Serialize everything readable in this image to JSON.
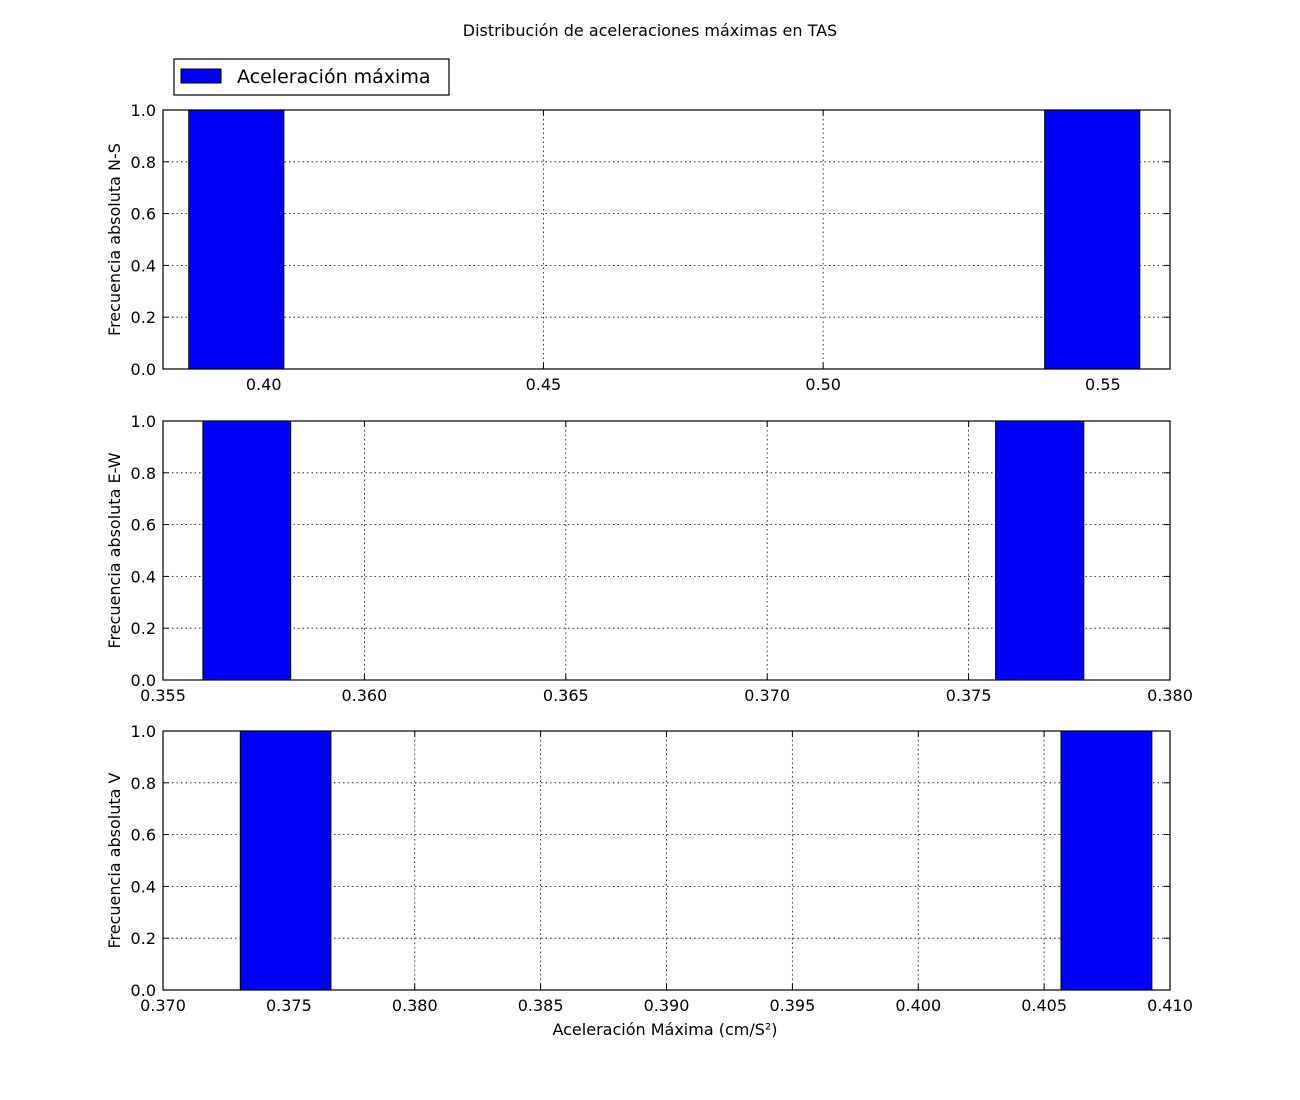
{
  "chart_data": {
    "type": "bar",
    "title": "Distribución de aceleraciones máximas en TAS",
    "legend": {
      "label": "Aceleración máxima",
      "placement": "upper-left",
      "color": "#0000ff"
    },
    "bar_color": "#0000ff",
    "grid": true,
    "xlabel": "Aceleración Máxima (cm/S²)",
    "panels": [
      {
        "ylabel": "Frecuencia absoluta N-S",
        "xlim": [
          0.382,
          0.562
        ],
        "ylim": [
          0,
          1.0
        ],
        "xticks": [
          "0.40",
          "0.45",
          "0.50",
          "0.55"
        ],
        "yticks": [
          "0.0",
          "0.2",
          "0.4",
          "0.6",
          "0.8",
          "1.0"
        ],
        "bars": [
          {
            "x0": 0.3866,
            "x1": 0.4036,
            "value": 1.0
          },
          {
            "x0": 0.5396,
            "x1": 0.5566,
            "value": 1.0
          }
        ]
      },
      {
        "ylabel": "Frecuencia absoluta E-W",
        "xlim": [
          0.355,
          0.38
        ],
        "ylim": [
          0,
          1.0
        ],
        "xticks": [
          "0.355",
          "0.360",
          "0.365",
          "0.370",
          "0.375",
          "0.380"
        ],
        "yticks": [
          "0.0",
          "0.2",
          "0.4",
          "0.6",
          "0.8",
          "1.0"
        ],
        "bars": [
          {
            "x0": 0.35599,
            "x1": 0.35817,
            "value": 1.0
          },
          {
            "x0": 0.37567,
            "x1": 0.37786,
            "value": 1.0
          }
        ]
      },
      {
        "ylabel": "Frecuencia absoluta V",
        "xlim": [
          0.37,
          0.41
        ],
        "ylim": [
          0,
          1.0
        ],
        "xticks": [
          "0.370",
          "0.375",
          "0.380",
          "0.385",
          "0.390",
          "0.395",
          "0.400",
          "0.405",
          "0.410"
        ],
        "yticks": [
          "0.0",
          "0.2",
          "0.4",
          "0.6",
          "0.8",
          "1.0"
        ],
        "bars": [
          {
            "x0": 0.37307,
            "x1": 0.37667,
            "value": 1.0
          },
          {
            "x0": 0.40567,
            "x1": 0.40928,
            "value": 1.0
          }
        ]
      }
    ]
  }
}
